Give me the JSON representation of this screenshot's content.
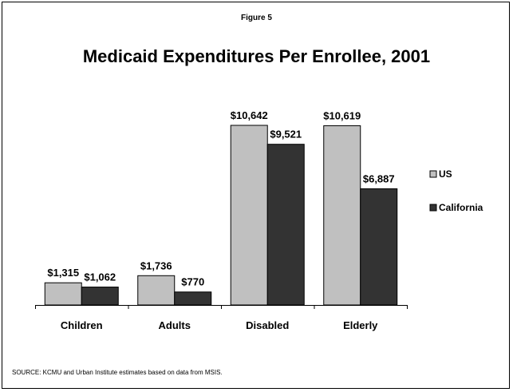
{
  "figure_label": "Figure 5",
  "source_note": "SOURCE: KCMU and Urban Institute estimates based on data from MSIS.",
  "colors": {
    "us": "#c0c0c0",
    "california": "#333333",
    "outline": "#000000"
  },
  "chart_data": {
    "type": "bar",
    "title": "Medicaid Expenditures Per Enrollee, 2001",
    "categories": [
      "Children",
      "Adults",
      "Disabled",
      "Elderly"
    ],
    "series": [
      {
        "name": "US",
        "values": [
          1315,
          1736,
          10642,
          10619
        ],
        "labels": [
          "$1,315",
          "$1,736",
          "$10,642",
          "$10,619"
        ]
      },
      {
        "name": "California",
        "values": [
          1062,
          770,
          9521,
          6887
        ],
        "labels": [
          "$1,062",
          "$770",
          "$9,521",
          "$6,887"
        ]
      }
    ],
    "legend_position": "right",
    "grid": false
  }
}
